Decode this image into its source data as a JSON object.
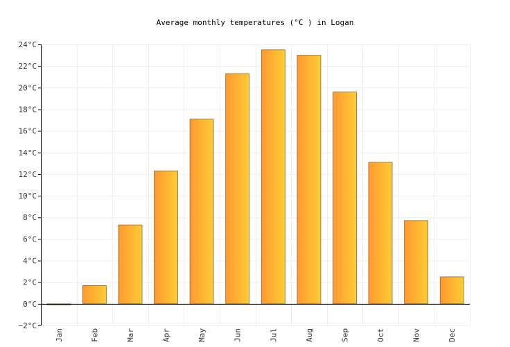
{
  "chart_data": {
    "type": "bar",
    "title": "Average monthly temperatures (°C ) in Logan",
    "categories": [
      "Jan",
      "Feb",
      "Mar",
      "Apr",
      "May",
      "Jun",
      "Jul",
      "Aug",
      "Sep",
      "Oct",
      "Nov",
      "Dec"
    ],
    "values": [
      -0.1,
      1.7,
      7.3,
      12.3,
      17.1,
      21.3,
      23.5,
      23.0,
      19.6,
      13.1,
      7.7,
      2.5
    ],
    "ylim": [
      -2,
      24
    ],
    "yticks": [
      "−2°C",
      "0°C",
      "2°C",
      "4°C",
      "6°C",
      "8°C",
      "10°C",
      "12°C",
      "14°C",
      "16°C",
      "18°C",
      "20°C",
      "22°C",
      "24°C"
    ],
    "ytick_values": [
      -2,
      0,
      2,
      4,
      6,
      8,
      10,
      12,
      14,
      16,
      18,
      20,
      22,
      24
    ],
    "grid": true,
    "bar_colors": [
      "#ff9933",
      "#ffcc33"
    ],
    "bar_stroke": "#8a6a3a"
  }
}
